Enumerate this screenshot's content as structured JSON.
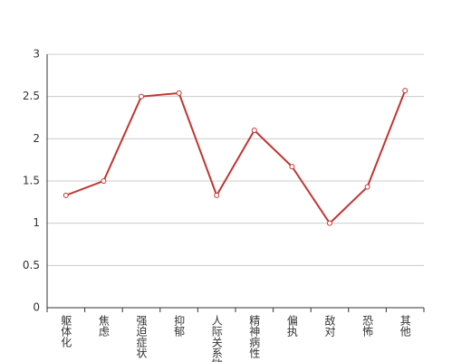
{
  "chart_data": {
    "type": "line",
    "categories": [
      "躯体化",
      "焦虑",
      "强迫症状",
      "抑郁",
      "人际关系敏感",
      "精神病性",
      "偏执",
      "敌对",
      "恐怖",
      "其他"
    ],
    "series": [
      {
        "color": "#c23531",
        "values": [
          1.33,
          1.5,
          2.5,
          2.54,
          1.33,
          2.1,
          1.67,
          1.0,
          1.43,
          2.57
        ]
      }
    ],
    "ylim": [
      0,
      3
    ],
    "yticks": [
      0,
      0.5,
      1,
      1.5,
      2,
      2.5,
      3
    ],
    "grid": true
  }
}
